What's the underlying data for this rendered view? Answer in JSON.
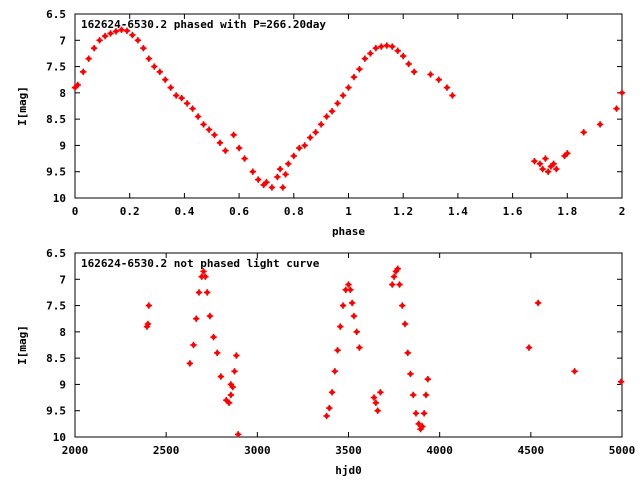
{
  "chart_data": [
    {
      "type": "scatter",
      "title": "162624-6530.2 phased with P=266.20day",
      "xlabel": "phase",
      "ylabel": "I[mag]",
      "xlim": [
        0,
        2
      ],
      "ylim": [
        10,
        6.5
      ],
      "y_inverted": true,
      "xticks": [
        "0",
        "0.2",
        "0.4",
        "0.6",
        "0.8",
        "1",
        "1.2",
        "1.4",
        "1.6",
        "1.8",
        "2"
      ],
      "yticks": [
        "6.5",
        "7",
        "7.5",
        "8",
        "8.5",
        "9",
        "9.5",
        "10"
      ],
      "marker_color": "#ff0000",
      "series": [
        {
          "x": [
            0.0,
            0.01,
            0.03,
            0.05,
            0.07,
            0.09,
            0.11,
            0.13,
            0.15,
            0.17,
            0.19,
            0.21,
            0.23,
            0.25,
            0.27,
            0.29,
            0.31,
            0.33,
            0.35,
            0.37,
            0.39,
            0.41,
            0.43,
            0.45,
            0.47,
            0.49,
            0.51,
            0.53,
            0.55,
            0.58,
            0.6,
            0.62,
            0.65,
            0.67,
            0.69,
            0.7,
            0.72,
            0.74,
            0.75,
            0.76,
            0.77,
            0.78,
            0.8,
            0.82,
            0.84,
            0.86,
            0.88,
            0.9,
            0.92,
            0.94,
            0.96,
            0.98,
            1.0,
            1.02,
            1.04,
            1.06,
            1.08,
            1.1,
            1.12,
            1.14,
            1.16,
            1.18,
            1.2,
            1.22,
            1.24,
            1.3,
            1.33,
            1.36,
            1.38,
            1.68,
            1.7,
            1.71,
            1.72,
            1.73,
            1.74,
            1.75,
            1.76,
            1.79,
            1.8,
            1.86,
            1.92,
            1.98,
            2.0
          ],
          "y": [
            7.9,
            7.85,
            7.6,
            7.35,
            7.15,
            7.0,
            6.92,
            6.87,
            6.83,
            6.8,
            6.82,
            6.9,
            7.0,
            7.15,
            7.35,
            7.5,
            7.6,
            7.75,
            7.9,
            8.05,
            8.1,
            8.2,
            8.3,
            8.45,
            8.6,
            8.7,
            8.8,
            8.95,
            9.1,
            8.8,
            9.05,
            9.25,
            9.5,
            9.65,
            9.75,
            9.7,
            9.8,
            9.6,
            9.45,
            9.8,
            9.55,
            9.35,
            9.2,
            9.05,
            9.0,
            8.85,
            8.75,
            8.6,
            8.45,
            8.35,
            8.2,
            8.05,
            7.9,
            7.7,
            7.55,
            7.35,
            7.25,
            7.15,
            7.12,
            7.1,
            7.12,
            7.2,
            7.3,
            7.45,
            7.6,
            7.65,
            7.75,
            7.9,
            8.05,
            9.3,
            9.35,
            9.45,
            9.25,
            9.5,
            9.4,
            9.35,
            9.45,
            9.2,
            9.15,
            8.75,
            8.6,
            8.3,
            8.0
          ]
        }
      ]
    },
    {
      "type": "scatter",
      "title": "162624-6530.2 not phased light curve",
      "xlabel": "hjd0",
      "ylabel": "I[mag]",
      "xlim": [
        2000,
        5000
      ],
      "ylim": [
        10,
        6.5
      ],
      "y_inverted": true,
      "xticks": [
        "2000",
        "2500",
        "3000",
        "3500",
        "4000",
        "4500",
        "5000"
      ],
      "yticks": [
        "6.5",
        "7",
        "7.5",
        "8",
        "8.5",
        "9",
        "9.5",
        "10"
      ],
      "marker_color": "#ff0000",
      "series": [
        {
          "x": [
            2395,
            2400,
            2405,
            2630,
            2650,
            2665,
            2680,
            2695,
            2705,
            2715,
            2725,
            2740,
            2760,
            2780,
            2800,
            2830,
            2845,
            2855,
            2865,
            2875,
            2885,
            2895,
            2855,
            3380,
            3395,
            3410,
            3425,
            3440,
            3455,
            3470,
            3485,
            3500,
            3510,
            3520,
            3530,
            3545,
            3560,
            3640,
            3650,
            3660,
            3675,
            3740,
            3750,
            3760,
            3770,
            3780,
            3795,
            3810,
            3825,
            3840,
            3855,
            3870,
            3885,
            3895,
            3905,
            3915,
            3925,
            3935,
            4490,
            4540,
            4740,
            4995
          ],
          "y": [
            7.9,
            7.85,
            7.5,
            8.6,
            8.25,
            7.75,
            7.25,
            6.95,
            6.85,
            6.95,
            7.25,
            7.7,
            8.1,
            8.4,
            8.85,
            9.3,
            9.35,
            9.2,
            9.05,
            8.75,
            8.45,
            9.95,
            9.0,
            9.6,
            9.45,
            9.15,
            8.75,
            8.35,
            7.9,
            7.5,
            7.2,
            7.1,
            7.2,
            7.45,
            7.7,
            8.0,
            8.3,
            9.25,
            9.35,
            9.5,
            9.15,
            7.1,
            6.95,
            6.85,
            6.8,
            7.1,
            7.5,
            7.85,
            8.4,
            8.8,
            9.2,
            9.55,
            9.75,
            9.85,
            9.8,
            9.55,
            9.2,
            8.9,
            8.3,
            7.45,
            8.75,
            8.95
          ]
        }
      ]
    }
  ]
}
